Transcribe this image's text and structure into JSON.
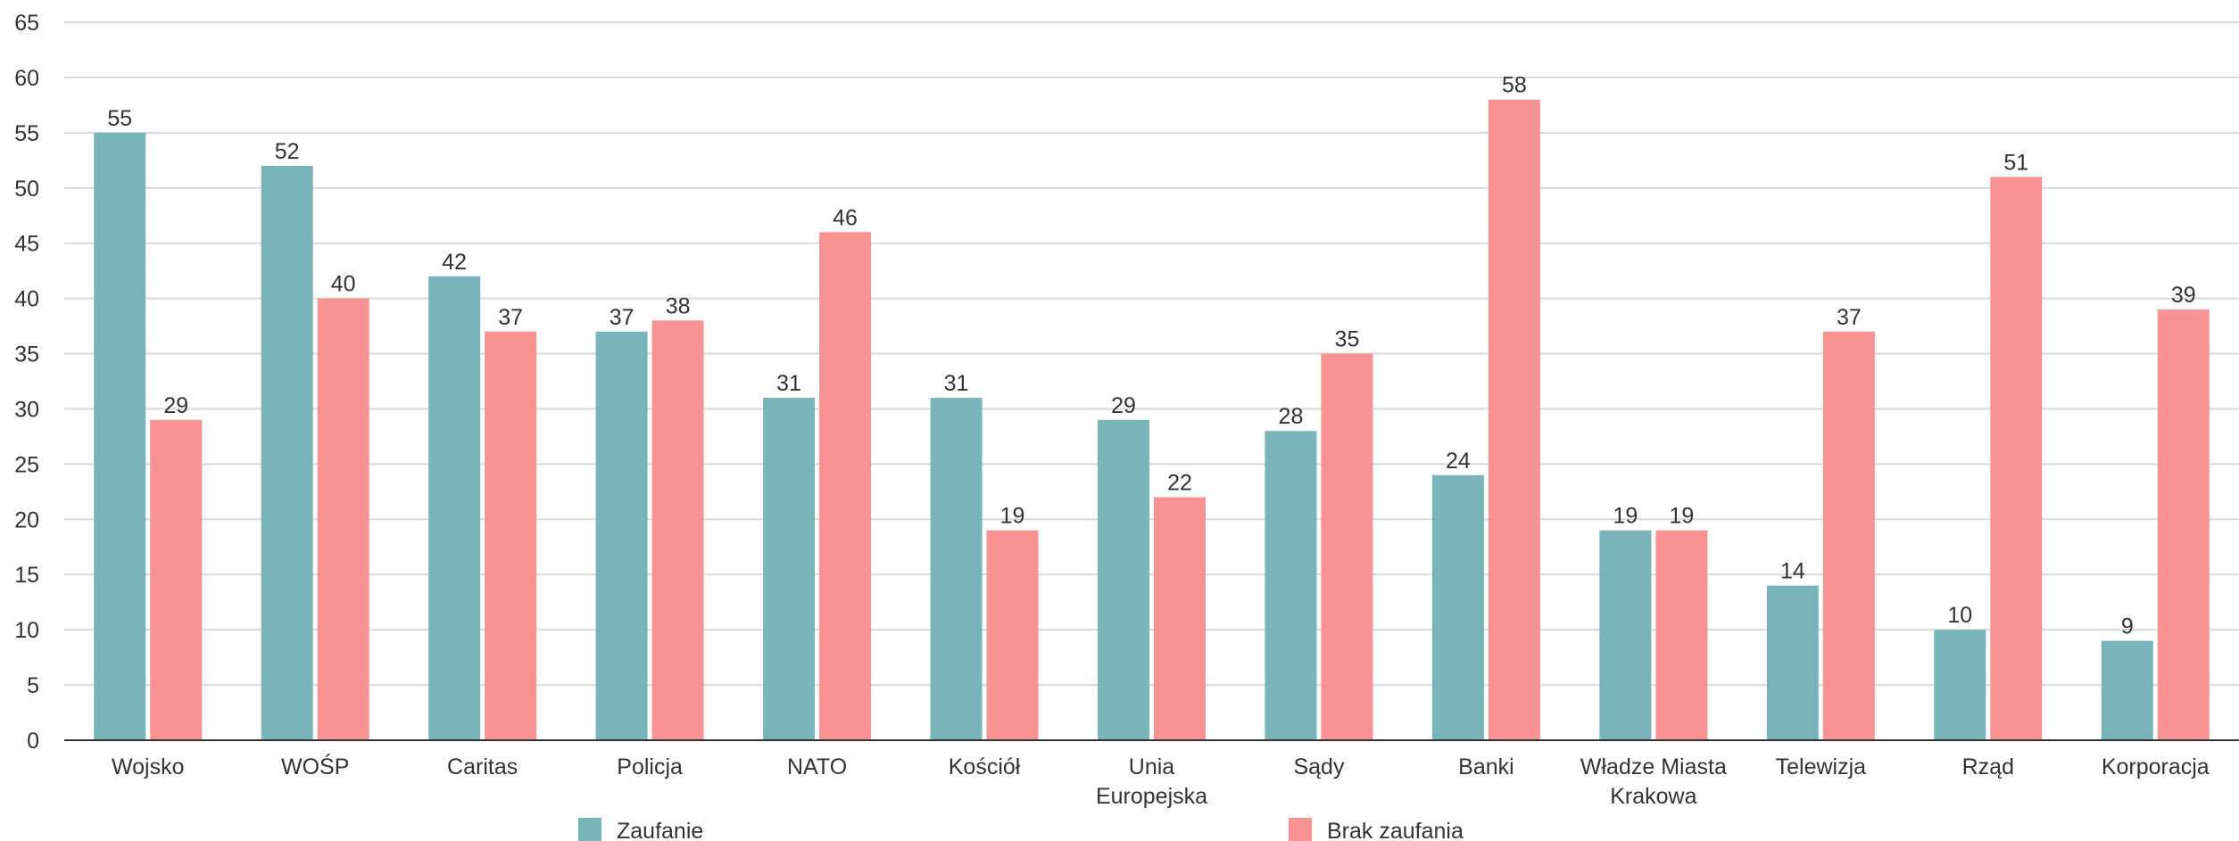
{
  "chart_data": {
    "type": "bar",
    "categories": [
      [
        "Wojsko"
      ],
      [
        "WOŚP"
      ],
      [
        "Caritas"
      ],
      [
        "Policja"
      ],
      [
        "NATO"
      ],
      [
        "Kościół"
      ],
      [
        "Unia",
        "Europejska"
      ],
      [
        "Sądy"
      ],
      [
        "Banki"
      ],
      [
        "Władze Miasta",
        "Krakowa"
      ],
      [
        "Telewizja"
      ],
      [
        "Rząd"
      ],
      [
        "Korporacja"
      ]
    ],
    "series": [
      {
        "name": "Zaufanie",
        "color": "#78b4b9",
        "values": [
          55,
          52,
          42,
          37,
          31,
          31,
          29,
          28,
          24,
          19,
          14,
          10,
          9
        ]
      },
      {
        "name": "Brak zaufania",
        "color": "#f89293",
        "values": [
          29,
          40,
          37,
          38,
          46,
          19,
          22,
          35,
          58,
          19,
          37,
          51,
          39
        ]
      }
    ],
    "ylim": [
      0,
      65
    ],
    "yticks": [
      0,
      5,
      10,
      15,
      20,
      25,
      30,
      35,
      40,
      45,
      50,
      55,
      60,
      65
    ],
    "title": "",
    "xlabel": "",
    "ylabel": "",
    "grid": true,
    "legend": "bottom-center",
    "data_labels": true
  }
}
